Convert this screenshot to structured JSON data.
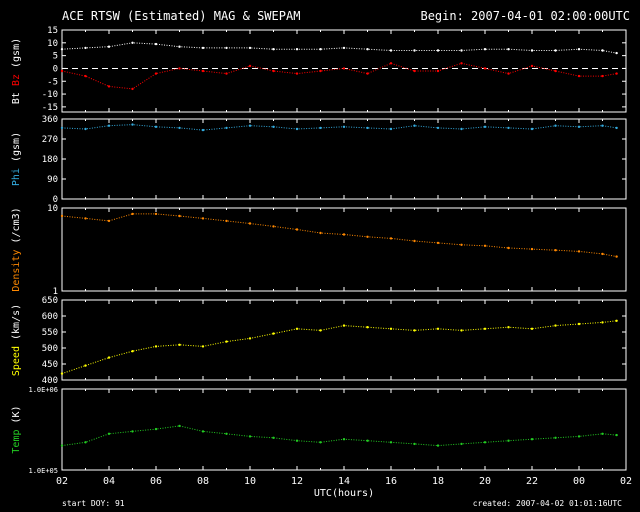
{
  "header": {
    "title": "ACE RTSW (Estimated) MAG & SWEPAM",
    "begin": "Begin: 2007-04-01 02:00:00UTC"
  },
  "footer": {
    "start_doy": "start DOY:  91",
    "created": "created: 2007-04-02 01:01:16UTC",
    "xlabel": "UTC(hours)"
  },
  "x_ticks": [
    "02",
    "04",
    "06",
    "08",
    "10",
    "12",
    "14",
    "16",
    "18",
    "20",
    "22",
    "00",
    "02"
  ],
  "colors": {
    "background": "#000000",
    "axes": "#ffffff",
    "bt": "#ffffff",
    "bz": "#ff0000",
    "phi": "#33aadd",
    "density": "#ff8800",
    "speed": "#ffff00",
    "temp": "#22cc22"
  },
  "chart_data": [
    {
      "type": "scatter",
      "panel": "mag",
      "ylabel_parts": [
        "Bt",
        "Bz",
        "(gsm)"
      ],
      "yticks": [
        "15",
        "10",
        "5",
        "0",
        "-5",
        "-10",
        "-15"
      ],
      "ylim": [
        -17,
        15
      ],
      "zero_line": true,
      "x_range_hours": [
        0,
        24
      ],
      "series": [
        {
          "name": "Bt",
          "x": [
            0,
            1,
            2,
            3,
            4,
            5,
            6,
            7,
            8,
            9,
            10,
            11,
            12,
            13,
            14,
            15,
            16,
            17,
            18,
            19,
            20,
            21,
            22,
            23,
            23.6
          ],
          "y": [
            7.5,
            8,
            8.5,
            10,
            9.5,
            8.5,
            8,
            8,
            8,
            7.5,
            7.5,
            7.5,
            8,
            7.5,
            7,
            7,
            7,
            7,
            7.5,
            7.5,
            7,
            7,
            7.5,
            7,
            6
          ]
        },
        {
          "name": "Bz",
          "x": [
            0,
            1,
            2,
            3,
            4,
            5,
            6,
            7,
            8,
            9,
            10,
            11,
            12,
            13,
            14,
            15,
            16,
            17,
            18,
            19,
            20,
            21,
            22,
            23,
            23.6
          ],
          "y": [
            -1,
            -3,
            -7,
            -8,
            -2,
            0,
            -1,
            -2,
            1,
            -1,
            -2,
            -1,
            0,
            -2,
            2,
            -1,
            -1,
            2,
            0,
            -2,
            1,
            -1,
            -3,
            -3,
            -2
          ]
        }
      ]
    },
    {
      "type": "scatter",
      "panel": "phi",
      "ylabel_parts": [
        "Phi",
        "(gsm)"
      ],
      "yticks": [
        "360",
        "270",
        "180",
        "90",
        "0"
      ],
      "ylim": [
        0,
        360
      ],
      "x_range_hours": [
        0,
        24
      ],
      "series": [
        {
          "name": "Phi",
          "x": [
            0,
            1,
            2,
            3,
            4,
            5,
            6,
            7,
            8,
            9,
            10,
            11,
            12,
            13,
            14,
            15,
            16,
            17,
            18,
            19,
            20,
            21,
            22,
            23,
            23.6
          ],
          "y": [
            320,
            315,
            330,
            335,
            325,
            320,
            310,
            320,
            330,
            325,
            315,
            320,
            325,
            320,
            315,
            330,
            320,
            315,
            325,
            320,
            315,
            330,
            325,
            330,
            320
          ]
        }
      ]
    },
    {
      "type": "scatter",
      "panel": "density",
      "ylabel_parts": [
        "Density",
        "(/cm3)"
      ],
      "yticks": [
        "10",
        "1"
      ],
      "yscale": "log",
      "ylim": [
        1,
        10
      ],
      "x_range_hours": [
        0,
        24
      ],
      "series": [
        {
          "name": "Density",
          "x": [
            0,
            1,
            2,
            3,
            4,
            5,
            6,
            7,
            8,
            9,
            10,
            11,
            12,
            13,
            14,
            15,
            16,
            17,
            18,
            19,
            20,
            21,
            22,
            23,
            23.6
          ],
          "y": [
            8,
            7.5,
            7,
            8.5,
            8.5,
            8,
            7.5,
            7,
            6.5,
            6,
            5.5,
            5,
            4.8,
            4.5,
            4.3,
            4,
            3.8,
            3.6,
            3.5,
            3.3,
            3.2,
            3.1,
            3,
            2.8,
            2.6
          ]
        }
      ]
    },
    {
      "type": "scatter",
      "panel": "speed",
      "ylabel_parts": [
        "Speed",
        "(km/s)"
      ],
      "yticks": [
        "650",
        "600",
        "550",
        "500",
        "450",
        "400"
      ],
      "ylim": [
        400,
        650
      ],
      "x_range_hours": [
        0,
        24
      ],
      "series": [
        {
          "name": "Speed",
          "x": [
            0,
            1,
            2,
            3,
            4,
            5,
            6,
            7,
            8,
            9,
            10,
            11,
            12,
            13,
            14,
            15,
            16,
            17,
            18,
            19,
            20,
            21,
            22,
            23,
            23.6
          ],
          "y": [
            420,
            445,
            470,
            490,
            505,
            510,
            505,
            520,
            530,
            545,
            560,
            555,
            570,
            565,
            560,
            555,
            560,
            555,
            560,
            565,
            560,
            570,
            575,
            580,
            585
          ]
        }
      ]
    },
    {
      "type": "scatter",
      "panel": "temp",
      "ylabel_parts": [
        "Temp",
        "(K)"
      ],
      "yticks": [
        "1.0E+06",
        "1.0E+05"
      ],
      "yscale": "log",
      "ylim": [
        100000,
        1000000
      ],
      "x_range_hours": [
        0,
        24
      ],
      "series": [
        {
          "name": "Temp",
          "x": [
            0,
            1,
            2,
            3,
            4,
            5,
            6,
            7,
            8,
            9,
            10,
            11,
            12,
            13,
            14,
            15,
            16,
            17,
            18,
            19,
            20,
            21,
            22,
            23,
            23.6
          ],
          "y": [
            200000,
            220000,
            280000,
            300000,
            320000,
            350000,
            300000,
            280000,
            260000,
            250000,
            230000,
            220000,
            240000,
            230000,
            220000,
            210000,
            200000,
            210000,
            220000,
            230000,
            240000,
            250000,
            260000,
            280000,
            270000
          ]
        }
      ]
    }
  ]
}
